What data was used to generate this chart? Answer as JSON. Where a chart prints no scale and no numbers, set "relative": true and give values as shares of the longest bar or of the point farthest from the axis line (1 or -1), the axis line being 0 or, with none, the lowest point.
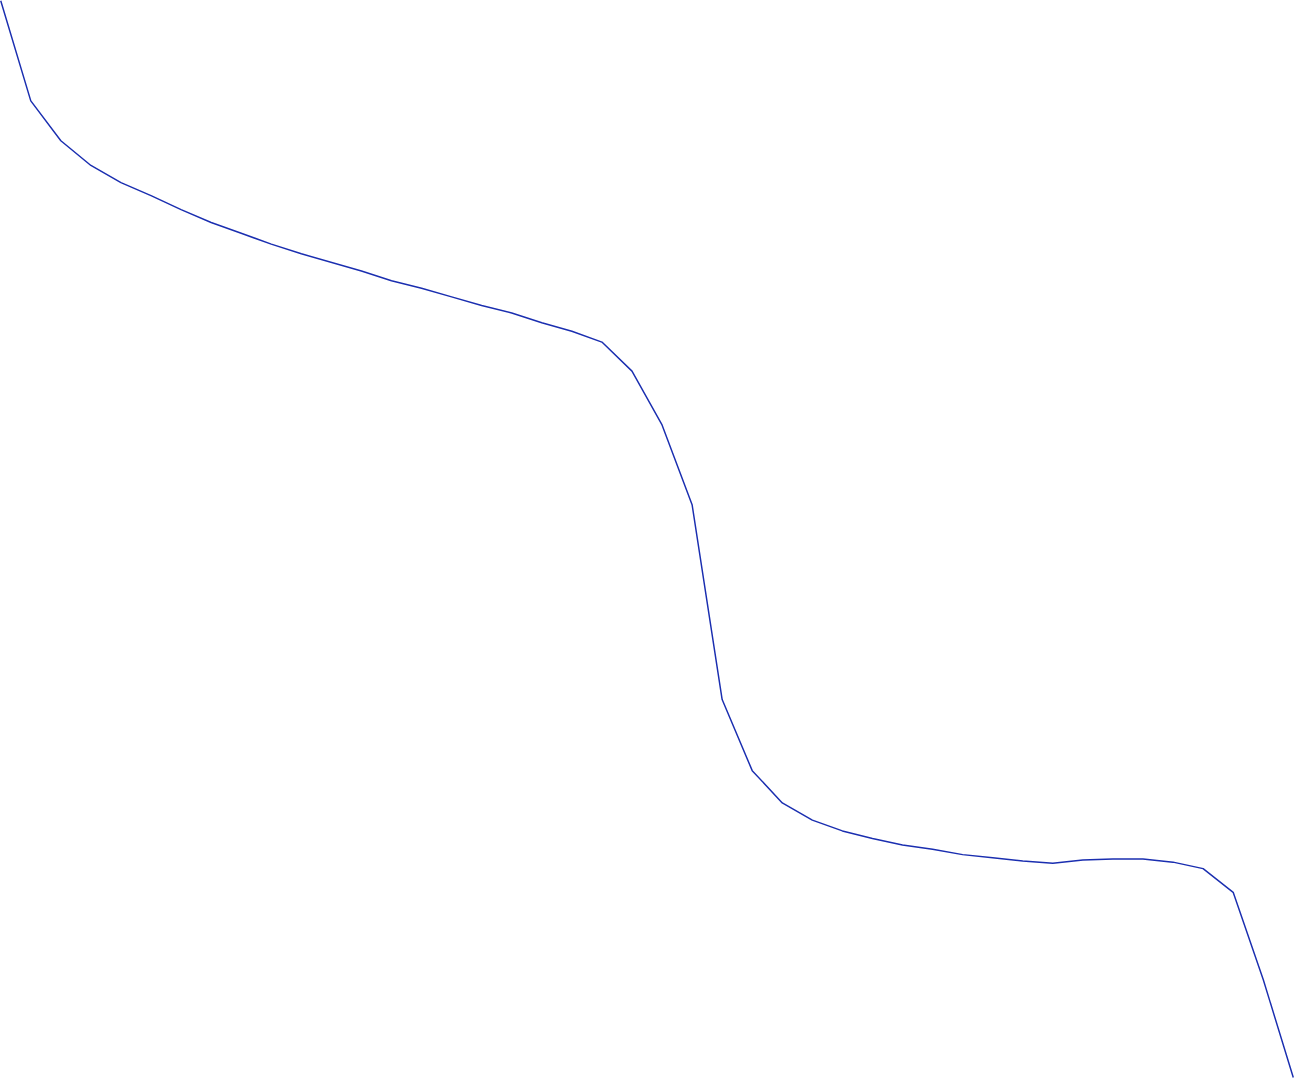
{
  "chart_data": {
    "type": "line",
    "relative": true,
    "categories": [
      null,
      null,
      null,
      null,
      null,
      null,
      null,
      null,
      null,
      null,
      null,
      null,
      null,
      null,
      null,
      null,
      null,
      null,
      null,
      null,
      null,
      null,
      null,
      null,
      null,
      null,
      null,
      null,
      null,
      null,
      null,
      null,
      null,
      null,
      null,
      null,
      null,
      null,
      null,
      null,
      null,
      null,
      null,
      null
    ],
    "series": [
      {
        "color": "#1a2eb0",
        "values": [
          1.0,
          0.907,
          0.87,
          0.847,
          0.831,
          0.819,
          0.806,
          0.794,
          0.784,
          0.774,
          0.765,
          0.757,
          0.749,
          0.74,
          0.733,
          0.725,
          0.717,
          0.71,
          0.701,
          0.693,
          0.683,
          0.656,
          0.606,
          0.532,
          0.351,
          0.285,
          0.255,
          0.239,
          0.229,
          0.222,
          0.216,
          0.212,
          0.207,
          0.204,
          0.201,
          0.199,
          0.202,
          0.203,
          0.203,
          0.2,
          0.194,
          0.172,
          0.091,
          0.0
        ]
      }
    ]
  }
}
